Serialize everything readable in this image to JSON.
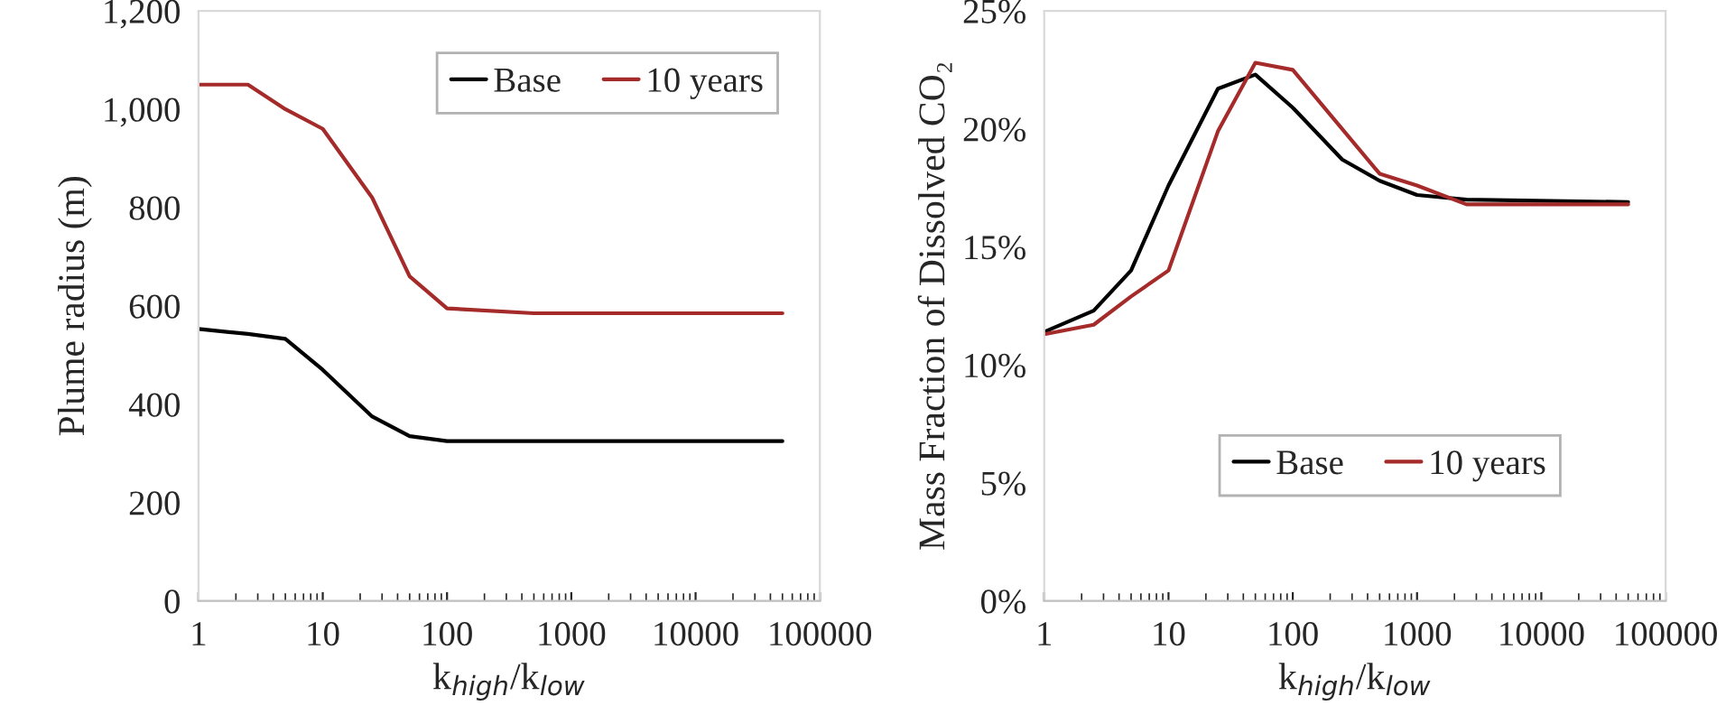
{
  "chart_data": [
    {
      "type": "line",
      "xlabel": "k$_{high}$/k$_{low}$",
      "ylabel": "Plume radius (m)",
      "log": "x",
      "grid": false,
      "legend": "top right",
      "xlim": [
        1,
        100000
      ],
      "xticks": [
        1,
        10,
        100,
        1000,
        10000,
        100000
      ],
      "ylim": [
        0,
        1200
      ],
      "yticks": [
        0,
        200,
        400,
        600,
        800,
        {
          "value": 1000,
          "label": "1,000"
        },
        {
          "value": 1200,
          "label": "1,200"
        }
      ],
      "x": [
        1,
        2.5,
        5,
        10,
        25,
        50,
        100,
        500,
        50000
      ],
      "series": [
        {
          "name": "Base",
          "color": "#000000",
          "values": [
            553,
            543,
            533,
            470,
            375,
            335,
            325,
            325,
            325
          ]
        },
        {
          "name": "10 years",
          "color": "#a52a2a",
          "values": [
            1050,
            1050,
            1000,
            960,
            820,
            660,
            595,
            585,
            585
          ]
        }
      ]
    },
    {
      "type": "line",
      "xlabel": "k$_{high}$/k$_{low}$",
      "ylabel": "Mass Fraction of Dissolved CO₂",
      "log": "x",
      "grid": false,
      "legend": "bottom right",
      "xlim": [
        1,
        100000
      ],
      "xticks": [
        1,
        10,
        100,
        1000,
        10000,
        100000
      ],
      "ylim": [
        0,
        25
      ],
      "yticks": [
        {
          "value": 0,
          "label": "0%"
        },
        {
          "value": 5,
          "label": "5%"
        },
        {
          "value": 10,
          "label": "10%"
        },
        {
          "value": 15,
          "label": "15%"
        },
        {
          "value": 20,
          "label": "20%"
        },
        {
          "value": 25,
          "label": "25%"
        }
      ],
      "series": [
        {
          "name": "Base",
          "color": "#000000",
          "x": [
            1,
            2.5,
            5,
            10,
            25,
            50,
            100,
            250,
            500,
            1000,
            2500,
            50000
          ],
          "values": [
            11.4,
            12.3,
            14.0,
            17.6,
            21.7,
            22.3,
            20.9,
            18.7,
            17.8,
            17.2,
            17.0,
            16.9
          ]
        },
        {
          "name": "10 years",
          "color": "#a52a2a",
          "x": [
            1,
            2.5,
            5,
            10,
            25,
            50,
            100,
            500,
            1000,
            2500,
            50000
          ],
          "values": [
            11.3,
            11.7,
            12.9,
            14.0,
            19.9,
            22.8,
            22.5,
            18.1,
            17.6,
            16.8,
            16.8
          ]
        }
      ]
    }
  ]
}
